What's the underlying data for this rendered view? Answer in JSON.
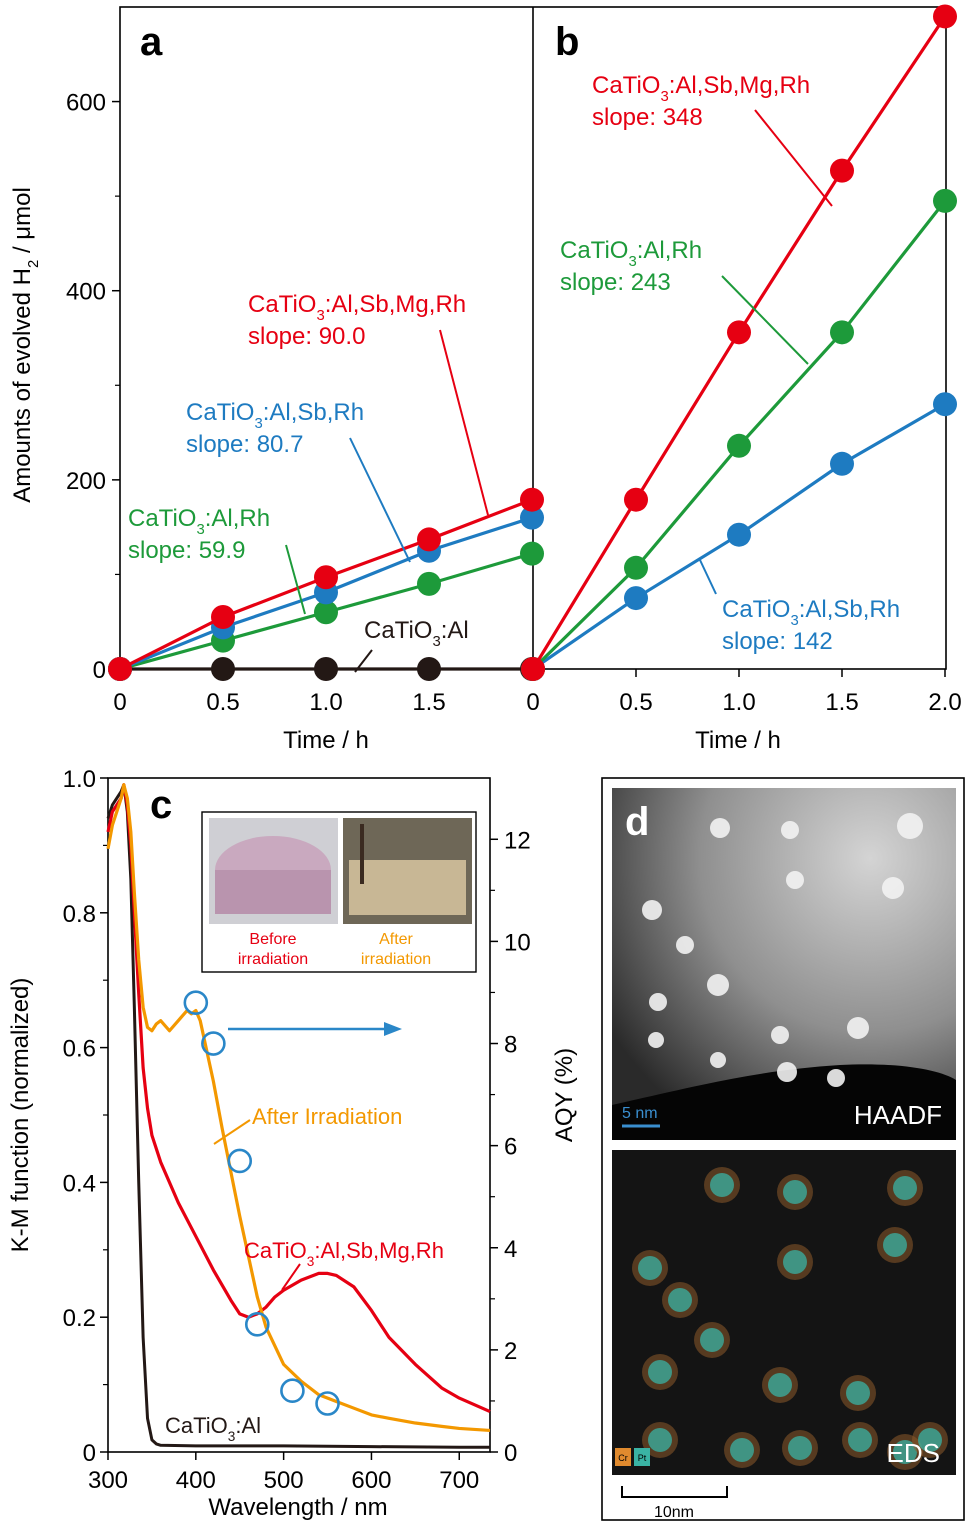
{
  "colors": {
    "red": "#e60012",
    "blue": "#1e7bc1",
    "green": "#1d9a3a",
    "black": "#231815",
    "orange": "#f39800",
    "axis": "#000000",
    "circle": "#2a87c8"
  },
  "panel_ab": {
    "ylabel_parts": [
      "Amounts of evolved H",
      "2",
      " / μmol"
    ],
    "xlabel": "Time / h",
    "y_ticks": [
      "0",
      "200",
      "400",
      "600"
    ],
    "x_ticks_a": [
      "0",
      "0.5",
      "1.0",
      "1.5"
    ],
    "x_ticks_b": [
      "0",
      "0.5",
      "1.0",
      "1.5",
      "2.0"
    ]
  },
  "panel_c": {
    "letter": "c",
    "xlabel": "Wavelength / nm",
    "ylabel_left": "K-M function (normalized)",
    "ylabel_right": "AQY (%)",
    "x_ticks": [
      "300",
      "400",
      "500",
      "600",
      "700"
    ],
    "y_left_ticks": [
      "0",
      "0.2",
      "0.4",
      "0.6",
      "0.8",
      "1.0"
    ],
    "y_right_ticks": [
      "0",
      "2",
      "4",
      "6",
      "8",
      "10",
      "12"
    ],
    "label_after": "After Irradiation",
    "label_red_parts": [
      "CaTiO",
      "3",
      ":Al,Sb,Mg,Rh"
    ],
    "label_black_parts": [
      "CaTiO",
      "3",
      ":Al"
    ],
    "inset": {
      "before_line1": "Before",
      "before_line2": "irradiation",
      "after_line1": "After",
      "after_line2": "irradiation"
    }
  },
  "panel_d": {
    "letter": "d",
    "haadf_label": "HAADF",
    "haadf_scale": "5 nm",
    "eds_label": "EDS",
    "eds_scale": "10nm",
    "legend_cr": "Cr",
    "legend_pt": "Pt"
  },
  "chart_data": [
    {
      "type": "line",
      "panel": "a",
      "xlabel": "Time / h",
      "ylabel": "Amounts of evolved H2 / μmol",
      "xlim": [
        0,
        2.0
      ],
      "ylim": [
        0,
        700
      ],
      "x": [
        0,
        0.5,
        1.0,
        1.5,
        2.0
      ],
      "series": [
        {
          "name": "CaTiO3:Al,Sb,Mg,Rh",
          "label_parts": [
            "CaTiO",
            "3",
            ":Al,Sb,Mg,Rh"
          ],
          "slope_label": "slope: 90.0",
          "color": "#e60012",
          "values": [
            0,
            55,
            97,
            137,
            179
          ]
        },
        {
          "name": "CaTiO3:Al,Sb,Rh",
          "label_parts": [
            "CaTiO",
            "3",
            ":Al,Sb,Rh"
          ],
          "slope_label": "slope: 80.7",
          "color": "#1e7bc1",
          "values": [
            0,
            44,
            81,
            125,
            160
          ]
        },
        {
          "name": "CaTiO3:Al,Rh",
          "label_parts": [
            "CaTiO",
            "3",
            ":Al,Rh"
          ],
          "slope_label": "slope: 59.9",
          "color": "#1d9a3a",
          "values": [
            0,
            30,
            60,
            90,
            122
          ]
        },
        {
          "name": "CaTiO3:Al",
          "label_parts": [
            "CaTiO",
            "3",
            ":Al"
          ],
          "slope_label": "",
          "color": "#231815",
          "values": [
            0,
            0,
            0,
            0,
            0
          ]
        }
      ]
    },
    {
      "type": "line",
      "panel": "b",
      "xlabel": "Time / h",
      "xlim": [
        0,
        2.0
      ],
      "ylim": [
        0,
        700
      ],
      "x": [
        0,
        0.5,
        1.0,
        1.5,
        2.0
      ],
      "series": [
        {
          "name": "CaTiO3:Al,Sb,Mg,Rh",
          "label_parts": [
            "CaTiO",
            "3",
            ":Al,Sb,Mg,Rh"
          ],
          "slope_label": "slope: 348",
          "color": "#e60012",
          "values": [
            0,
            179,
            356,
            527,
            690
          ]
        },
        {
          "name": "CaTiO3:Al,Rh",
          "label_parts": [
            "CaTiO",
            "3",
            ":Al,Rh"
          ],
          "slope_label": "slope: 243",
          "color": "#1d9a3a",
          "values": [
            0,
            107,
            236,
            356,
            495
          ]
        },
        {
          "name": "CaTiO3:Al,Sb,Rh",
          "label_parts": [
            "CaTiO",
            "3",
            ":Al,Sb,Rh"
          ],
          "slope_label": "slope: 142",
          "color": "#1e7bc1",
          "values": [
            0,
            75,
            142,
            217,
            280
          ]
        }
      ]
    },
    {
      "type": "line",
      "panel": "c",
      "xlabel": "Wavelength / nm",
      "ylabel": "K-M function (normalized)",
      "ylabel_right": "AQY (%)",
      "xlim": [
        300,
        735
      ],
      "ylim": [
        0,
        1.0
      ],
      "ylim_right": [
        0,
        13.2
      ],
      "series": [
        {
          "name": "After Irradiation",
          "color": "#f39800",
          "x": [
            300,
            305,
            310,
            315,
            318,
            322,
            326,
            330,
            335,
            340,
            345,
            350,
            355,
            360,
            370,
            380,
            390,
            395,
            400,
            405,
            410,
            420,
            430,
            440,
            450,
            460,
            470,
            480,
            500,
            520,
            540,
            560,
            580,
            600,
            620,
            650,
            680,
            700,
            735
          ],
          "y": [
            0.895,
            0.93,
            0.95,
            0.97,
            0.99,
            0.97,
            0.92,
            0.83,
            0.73,
            0.66,
            0.63,
            0.625,
            0.635,
            0.64,
            0.625,
            0.64,
            0.655,
            0.65,
            0.655,
            0.64,
            0.61,
            0.55,
            0.48,
            0.415,
            0.35,
            0.29,
            0.23,
            0.185,
            0.13,
            0.105,
            0.085,
            0.075,
            0.065,
            0.055,
            0.05,
            0.043,
            0.038,
            0.035,
            0.032
          ]
        },
        {
          "name": "CaTiO3:Al,Sb,Mg,Rh",
          "color": "#e60012",
          "x": [
            300,
            305,
            310,
            315,
            318,
            322,
            326,
            330,
            335,
            340,
            345,
            350,
            360,
            370,
            380,
            400,
            420,
            440,
            450,
            460,
            470,
            480,
            490,
            500,
            520,
            540,
            550,
            560,
            580,
            600,
            620,
            650,
            680,
            700,
            735
          ],
          "y": [
            0.92,
            0.95,
            0.96,
            0.97,
            0.99,
            0.96,
            0.9,
            0.8,
            0.68,
            0.57,
            0.51,
            0.47,
            0.43,
            0.4,
            0.37,
            0.32,
            0.27,
            0.225,
            0.205,
            0.2,
            0.205,
            0.215,
            0.23,
            0.24,
            0.255,
            0.265,
            0.265,
            0.262,
            0.245,
            0.21,
            0.17,
            0.13,
            0.095,
            0.08,
            0.06
          ]
        },
        {
          "name": "CaTiO3:Al",
          "color": "#231815",
          "x": [
            300,
            305,
            310,
            315,
            318,
            322,
            326,
            330,
            335,
            340,
            345,
            350,
            355,
            360,
            400,
            500,
            600,
            700,
            735
          ],
          "y": [
            0.94,
            0.96,
            0.97,
            0.98,
            0.99,
            0.95,
            0.85,
            0.66,
            0.4,
            0.17,
            0.05,
            0.018,
            0.012,
            0.01,
            0.009,
            0.009,
            0.008,
            0.007,
            0.007
          ]
        },
        {
          "name": "AQY",
          "type": "scatter",
          "axis": "right",
          "color": "#2a87c8",
          "x": [
            400,
            420,
            450,
            470,
            510,
            550
          ],
          "y": [
            8.8,
            8.0,
            5.7,
            2.5,
            1.2,
            0.95
          ]
        }
      ]
    }
  ]
}
